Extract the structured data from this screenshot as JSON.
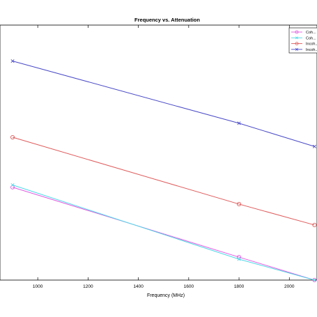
{
  "chart_data": {
    "type": "line",
    "title": "Frequency vs. Attenuation",
    "xlabel": "Frequency (MHz)",
    "ylabel": "",
    "xlim": [
      850,
      2110
    ],
    "ylim": [
      0,
      100
    ],
    "xticks": [
      1000,
      1200,
      1400,
      1600,
      1800,
      2000
    ],
    "grid": false,
    "legend_position": "top-right",
    "series": [
      {
        "name": "Coh...",
        "color": "#e05ce0",
        "marker": "circle",
        "x": [
          900,
          1800,
          2100
        ],
        "values": [
          36.4,
          9.0,
          0.0
        ]
      },
      {
        "name": "Coh...",
        "color": "#4fd8e8",
        "marker": "x",
        "x": [
          900,
          1800,
          2100
        ],
        "values": [
          37.3,
          8.2,
          0.0
        ]
      },
      {
        "name": "Incoh...",
        "color": "#e05a5a",
        "marker": "circle",
        "x": [
          900,
          1800,
          2100
        ],
        "values": [
          56.0,
          29.8,
          21.6
        ]
      },
      {
        "name": "Incoh...",
        "color": "#4a4ac8",
        "marker": "x",
        "x": [
          900,
          1800,
          2100
        ],
        "values": [
          85.9,
          61.5,
          52.4
        ]
      }
    ]
  }
}
